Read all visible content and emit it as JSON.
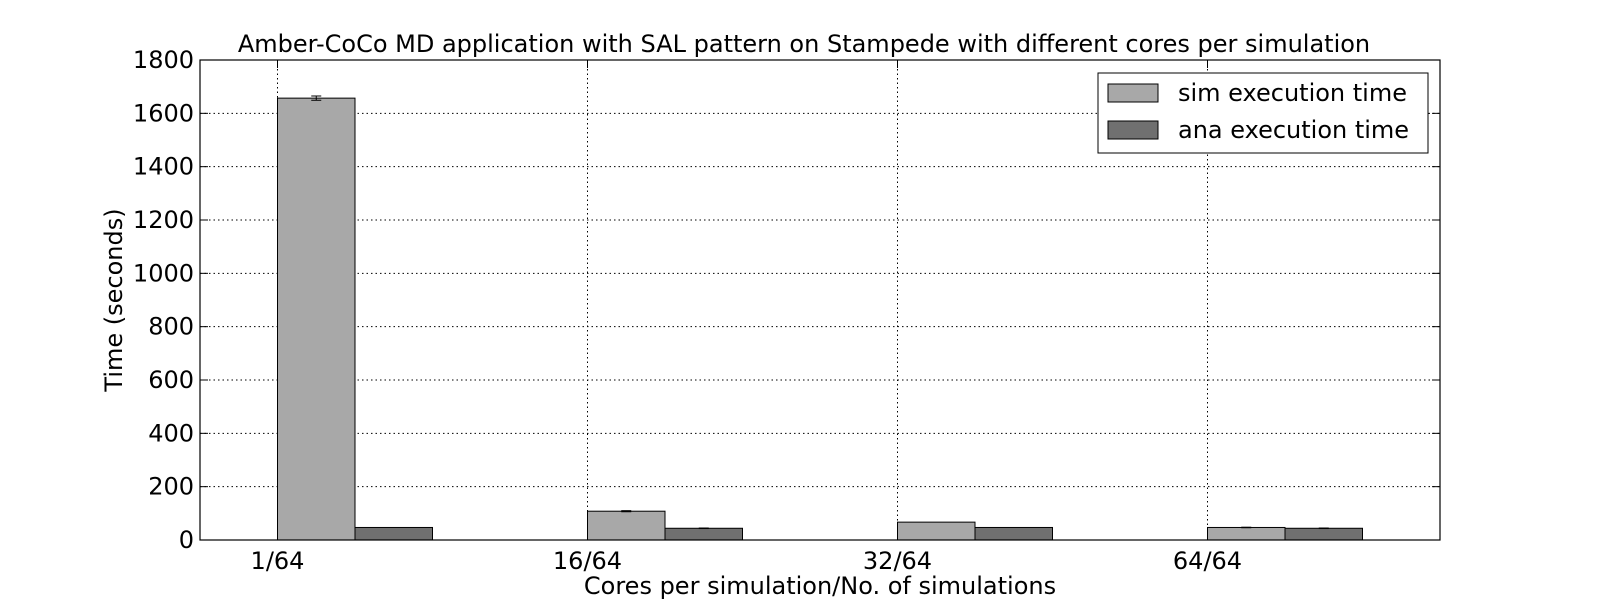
{
  "chart_data": {
    "type": "bar",
    "title": "Amber-CoCo MD application with SAL pattern on Stampede with different cores per simulation",
    "xlabel": "Cores per simulation/No. of simulations",
    "ylabel": "Time (seconds)",
    "categories": [
      "1/64",
      "16/64",
      "32/64",
      "64/64"
    ],
    "ylim": [
      0,
      1800
    ],
    "yticks": [
      0,
      200,
      400,
      600,
      800,
      1000,
      1200,
      1400,
      1600,
      1800
    ],
    "grid": true,
    "legend_position": "top-right",
    "series": [
      {
        "name": "sim execution time",
        "color": "#a8a8a8",
        "values": [
          1657,
          108,
          67,
          47
        ],
        "errors": [
          8,
          2,
          0,
          1
        ]
      },
      {
        "name": "ana execution time",
        "color": "#707070",
        "values": [
          47,
          44,
          47,
          44
        ],
        "errors": [
          0,
          1,
          0,
          1
        ]
      }
    ]
  }
}
